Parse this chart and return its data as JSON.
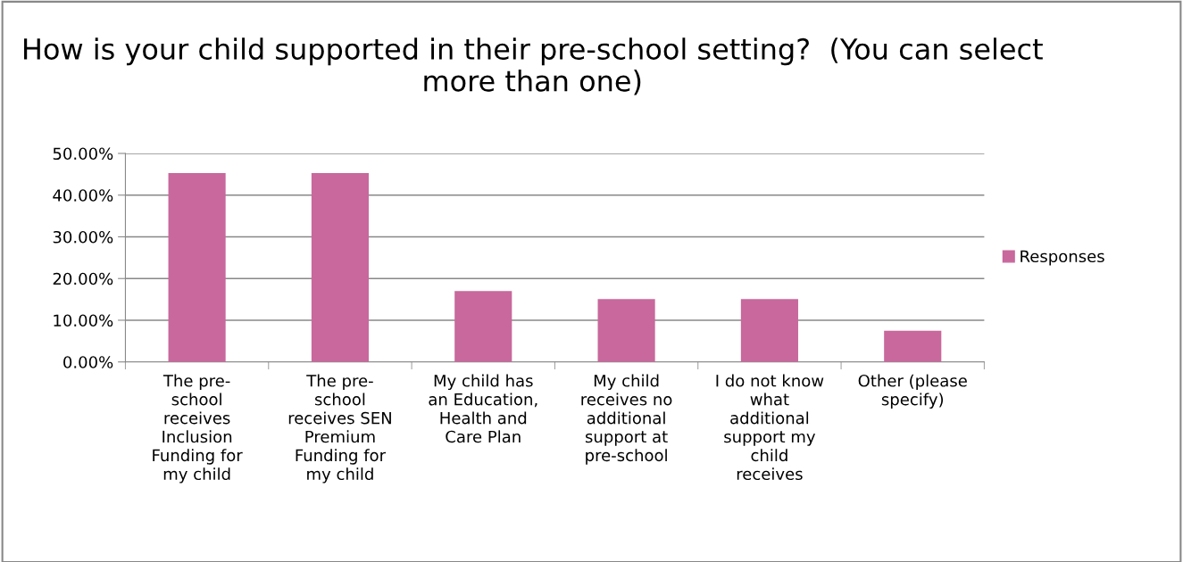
{
  "chart_data": {
    "type": "bar",
    "title": "How is your child supported in their pre-school setting?  (You can select more than one)",
    "categories": [
      "The pre-school receives Inclusion Funding for my child",
      "The pre-school receives SEN Premium Funding for my child",
      "My child has an Education, Health and Care Plan",
      "My child receives no additional support at pre-school",
      "I do not know what additional support my child receives",
      "Other (please specify)"
    ],
    "series": [
      {
        "name": "Responses",
        "color": "#c8689c",
        "values": [
          45.3,
          45.3,
          17.0,
          15.1,
          15.1,
          7.5
        ]
      }
    ],
    "ylim": [
      0,
      50
    ],
    "yticks": [
      {
        "value": 0,
        "label": "0.00%"
      },
      {
        "value": 10,
        "label": "10.00%"
      },
      {
        "value": 20,
        "label": "20.00%"
      },
      {
        "value": 30,
        "label": "30.00%"
      },
      {
        "value": 40,
        "label": "40.00%"
      },
      {
        "value": 50,
        "label": "50.00%"
      }
    ],
    "grid": "y",
    "legend": "right"
  }
}
